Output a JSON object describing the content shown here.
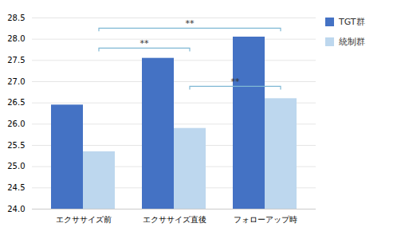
{
  "chart_data": {
    "type": "bar",
    "categories": [
      "エクササイズ前",
      "エクササイズ直後",
      "フォローアップ時"
    ],
    "series": [
      {
        "name": "TGT群",
        "color": "#4472C4",
        "values": [
          26.45,
          27.55,
          28.05
        ]
      },
      {
        "name": "統制群",
        "color": "#BDD7EE",
        "values": [
          25.35,
          25.9,
          26.6
        ]
      }
    ],
    "ylim": [
      24.0,
      28.5
    ],
    "yticks": [
      {
        "value": 24,
        "label": "24.0"
      },
      24.5,
      {
        "value": 25,
        "label": "25.0"
      },
      25.5,
      {
        "value": 26,
        "label": "26.0"
      },
      26.5,
      {
        "value": 27,
        "label": "27.0"
      },
      27.5,
      {
        "value": 28,
        "label": "28.0"
      },
      28.5
    ],
    "grid": true,
    "legend": "right",
    "annotations": [
      {
        "text": "**",
        "from": "エクササイズ前",
        "to": "エクササイズ直後",
        "y": 27.78,
        "series": "統制群",
        "color": "#7FB8D4"
      },
      {
        "text": "**",
        "from": "エクササイズ前",
        "to": "フォローアップ時",
        "y": 28.25,
        "series": "統制群",
        "color": "#7FB8D4"
      },
      {
        "text": "**",
        "from": "エクササイズ直後",
        "to": "フォローアップ時",
        "y": 26.88,
        "series": "統制群",
        "color": "#7FB8D4"
      }
    ]
  }
}
